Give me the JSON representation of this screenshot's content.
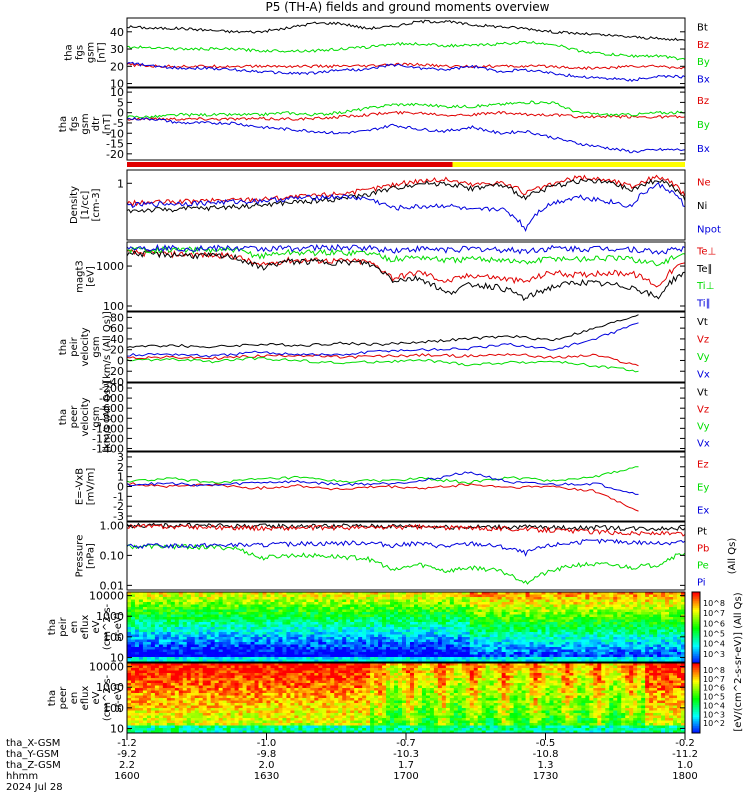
{
  "title": "P5 (TH-A) fields and ground moments overview",
  "colors": {
    "black": "#000000",
    "red": "#e00000",
    "green": "#00dd00",
    "blue": "#0000dd",
    "yellow": "#ffff00"
  },
  "chart_data": [
    {
      "type": "line",
      "panel": "fgs_gsm",
      "ylabel_lines": [
        "tha",
        "fgs",
        "gsm",
        "[nT]"
      ],
      "yticks": [
        "40",
        "30",
        "20",
        "10"
      ],
      "ylim": [
        8,
        48
      ],
      "series": [
        {
          "name": "Bt",
          "color": "black",
          "y": [
            43,
            42,
            42,
            41,
            40,
            40,
            42,
            45,
            45,
            42,
            43,
            46,
            46,
            44,
            43,
            42,
            40,
            39,
            38,
            37,
            36,
            35
          ]
        },
        {
          "name": "Bz",
          "color": "red",
          "y": [
            21,
            20,
            20,
            20,
            20,
            20,
            20,
            20,
            20,
            20,
            21,
            21,
            20,
            20,
            20,
            20,
            20,
            19,
            19,
            20,
            20,
            19
          ]
        },
        {
          "name": "By",
          "color": "green",
          "y": [
            31,
            31,
            30,
            30,
            30,
            29,
            29,
            29,
            30,
            31,
            33,
            33,
            32,
            32,
            33,
            34,
            33,
            29,
            27,
            26,
            26,
            24
          ]
        },
        {
          "name": "Bx",
          "color": "blue",
          "y": [
            22,
            20,
            19,
            19,
            18,
            17,
            16,
            16,
            18,
            18,
            21,
            19,
            18,
            20,
            17,
            18,
            16,
            14,
            13,
            12,
            14,
            14
          ]
        }
      ]
    },
    {
      "type": "line",
      "panel": "fgs_gsm_dt",
      "ylabel_lines": [
        "tha",
        "fgs",
        "gsm",
        "dtr",
        "[nT]"
      ],
      "yticks": [
        "10",
        "5",
        "0",
        "-5",
        "-10",
        "-15",
        "-20"
      ],
      "ylim": [
        -23,
        12
      ],
      "series": [
        {
          "name": "Bz",
          "color": "red",
          "y": [
            -3,
            -3,
            -3,
            -3,
            -3,
            -3,
            -3,
            -3,
            -2,
            -1,
            0,
            0,
            -1,
            -1,
            0,
            -1,
            -1,
            -2,
            -2,
            -2,
            -2,
            -2
          ]
        },
        {
          "name": "By",
          "color": "green",
          "y": [
            -2,
            -2,
            -1,
            -1,
            -1,
            -1,
            0,
            -1,
            0,
            2,
            4,
            4,
            3,
            3,
            4,
            5,
            5,
            0,
            -1,
            -1,
            0,
            0
          ]
        },
        {
          "name": "Bx",
          "color": "blue",
          "y": [
            -3,
            -3,
            -5,
            -5,
            -5,
            -7,
            -8,
            -9,
            -10,
            -9,
            -6,
            -8,
            -9,
            -7,
            -10,
            -9,
            -12,
            -15,
            -17,
            -19,
            -18,
            -18
          ]
        }
      ],
      "mode_bar": [
        {
          "from": 1600,
          "to": 1710,
          "color": "red"
        },
        {
          "from": 1710,
          "to": 1800,
          "color": "yellow"
        }
      ]
    },
    {
      "type": "line",
      "panel": "density",
      "log": true,
      "ylabel_lines": [
        "Density",
        "[1/cc]",
        "[cm-3]"
      ],
      "yticks": [
        "1"
      ],
      "ylim": [
        0.02,
        2.5
      ],
      "series": [
        {
          "name": "Ne",
          "color": "red",
          "y": [
            0.25,
            0.27,
            0.28,
            0.3,
            0.32,
            0.34,
            0.38,
            0.42,
            0.5,
            0.6,
            0.9,
            1.2,
            1.3,
            0.9,
            1.1,
            0.5,
            0.9,
            1.5,
            1.3,
            0.8,
            1.6,
            0.4
          ]
        },
        {
          "name": "Ni",
          "color": "black",
          "y": [
            0.15,
            0.16,
            0.17,
            0.18,
            0.2,
            0.22,
            0.26,
            0.3,
            0.35,
            0.45,
            0.7,
            1.0,
            1.0,
            0.7,
            0.9,
            0.35,
            0.8,
            1.2,
            1.1,
            0.6,
            1.3,
            0.3
          ]
        },
        {
          "name": "Npot",
          "color": "blue",
          "y": [
            0.22,
            0.24,
            0.25,
            0.26,
            0.28,
            0.3,
            0.34,
            0.38,
            0.4,
            0.35,
            0.18,
            0.2,
            0.22,
            0.15,
            0.18,
            0.04,
            0.25,
            0.4,
            0.3,
            0.2,
            0.9,
            0.2
          ]
        }
      ]
    },
    {
      "type": "line",
      "panel": "temperature",
      "log": true,
      "ylabel_lines": [
        "magt3",
        "[eV]"
      ],
      "yticks": [
        "1000",
        "100"
      ],
      "ylim": [
        75,
        4000
      ],
      "series": [
        {
          "name": "Te⊥",
          "color": "red",
          "y": [
            2200,
            2100,
            2000,
            1900,
            1800,
            1000,
            1400,
            1400,
            1350,
            1300,
            500,
            700,
            400,
            600,
            500,
            400,
            700,
            600,
            700,
            650,
            300,
            1200
          ]
        },
        {
          "name": "Te∥",
          "color": "black",
          "y": [
            2100,
            2000,
            1900,
            1800,
            1700,
            900,
            1300,
            1300,
            1250,
            1200,
            450,
            500,
            200,
            350,
            300,
            150,
            300,
            400,
            350,
            300,
            150,
            700
          ]
        },
        {
          "name": "Ti⊥",
          "color": "green",
          "y": [
            2600,
            2600,
            2600,
            2500,
            2500,
            1800,
            2200,
            2200,
            2200,
            2200,
            1500,
            1700,
            1400,
            1500,
            1500,
            1200,
            1600,
            1500,
            1600,
            1500,
            1100,
            2000
          ]
        },
        {
          "name": "Ti∥",
          "color": "blue",
          "y": [
            2900,
            2900,
            2800,
            2800,
            2800,
            2700,
            2800,
            2900,
            2900,
            2900,
            2500,
            2700,
            2600,
            2700,
            2600,
            2400,
            2800,
            2700,
            2800,
            2700,
            2200,
            2900
          ]
        }
      ]
    },
    {
      "type": "line",
      "panel": "peir_velocity",
      "ylabel_lines": [
        "tha",
        "peir",
        "velocity",
        "gsm",
        "[km/s (All Qs)]"
      ],
      "yticks": [
        "80",
        "60",
        "40",
        "20",
        "0",
        "-20",
        "-40"
      ],
      "ylim": [
        -40,
        90
      ],
      "series": [
        {
          "name": "Vt",
          "color": "black",
          "x": [
            0,
            1,
            2,
            3,
            4,
            5,
            6,
            7,
            8,
            9,
            10,
            11,
            12
          ],
          "y": [
            25,
            28,
            25,
            30,
            28,
            32,
            30,
            35,
            40,
            45,
            38,
            60,
            85
          ]
        },
        {
          "name": "Vz",
          "color": "red",
          "x": [
            0,
            1,
            2,
            3,
            4,
            5,
            6,
            7,
            8,
            9,
            10,
            11,
            12
          ],
          "y": [
            5,
            6,
            4,
            8,
            10,
            6,
            8,
            10,
            8,
            12,
            5,
            10,
            -10
          ]
        },
        {
          "name": "Vy",
          "color": "green",
          "x": [
            0,
            1,
            2,
            3,
            4,
            5,
            6,
            7,
            8,
            9,
            10,
            11,
            12
          ],
          "y": [
            0,
            2,
            -2,
            4,
            0,
            -5,
            -2,
            0,
            -8,
            -4,
            -2,
            -10,
            -20
          ]
        },
        {
          "name": "Vx",
          "color": "blue",
          "x": [
            0,
            1,
            2,
            3,
            4,
            5,
            6,
            7,
            8,
            9,
            10,
            11,
            12
          ],
          "y": [
            10,
            12,
            8,
            15,
            12,
            10,
            18,
            20,
            22,
            30,
            20,
            40,
            70
          ]
        }
      ]
    },
    {
      "type": "line",
      "panel": "peer_velocity",
      "ylabel_lines": [
        "tha",
        "peer",
        "velocity",
        "gsm",
        "[km/s (All Qs)]"
      ],
      "yticks": [
        "-200",
        "-400",
        "-600",
        "-800",
        "-1000",
        "-1200",
        "-1400"
      ],
      "ylim": [
        -1450,
        -100
      ],
      "series": [
        {
          "name": "Vt",
          "color": "black",
          "y": []
        },
        {
          "name": "Vz",
          "color": "red",
          "y": []
        },
        {
          "name": "Vy",
          "color": "green",
          "y": []
        },
        {
          "name": "Vx",
          "color": "blue",
          "y": []
        }
      ]
    },
    {
      "type": "line",
      "panel": "efield",
      "ylabel_lines": [
        "E=-VxB",
        "[mV/m]"
      ],
      "yticks": [
        "3",
        "2",
        "1",
        "0",
        "-1",
        "-2",
        "-3"
      ],
      "ylim": [
        -3.5,
        3.5
      ],
      "series": [
        {
          "name": "Ez",
          "color": "red",
          "x": [
            0,
            1,
            2,
            3,
            4,
            5,
            6,
            7,
            8,
            9,
            10,
            11,
            12
          ],
          "y": [
            0.3,
            0.0,
            0.2,
            -0.2,
            0.1,
            -0.3,
            0.0,
            -0.2,
            0.2,
            -0.1,
            0.0,
            -0.5,
            -2.5
          ]
        },
        {
          "name": "Ey",
          "color": "green",
          "x": [
            0,
            1,
            2,
            3,
            4,
            5,
            6,
            7,
            8,
            9,
            10,
            11,
            12
          ],
          "y": [
            0.5,
            0.8,
            0.4,
            0.7,
            0.9,
            0.5,
            0.6,
            0.8,
            0.4,
            0.9,
            0.6,
            1.0,
            2.0
          ]
        },
        {
          "name": "Ex",
          "color": "blue",
          "x": [
            0,
            1,
            2,
            3,
            4,
            5,
            6,
            7,
            8,
            9,
            10,
            11,
            12
          ],
          "y": [
            0.2,
            0.3,
            0.1,
            0.4,
            0.5,
            0.2,
            0.3,
            0.6,
            1.5,
            0.4,
            0.2,
            0.3,
            -0.8
          ]
        }
      ]
    },
    {
      "type": "line",
      "panel": "pressure",
      "log": true,
      "ylabel_lines": [
        "Pressure",
        "[nPa]"
      ],
      "yticks": [
        "1.00",
        "0.10",
        "0.01"
      ],
      "ylim": [
        0.007,
        1.3
      ],
      "series": [
        {
          "name": "Pt",
          "color": "black",
          "y": [
            1.0,
            1.0,
            1.0,
            1.0,
            0.95,
            0.95,
            0.95,
            0.95,
            0.95,
            0.95,
            0.95,
            0.95,
            0.9,
            0.9,
            0.9,
            0.9,
            0.85,
            0.85,
            0.85,
            0.8,
            0.8,
            0.8
          ]
        },
        {
          "name": "Pb",
          "color": "red",
          "y": [
            0.95,
            0.92,
            0.9,
            0.88,
            0.85,
            0.82,
            0.82,
            0.85,
            0.85,
            0.85,
            0.88,
            0.9,
            0.85,
            0.82,
            0.8,
            0.75,
            0.7,
            0.65,
            0.6,
            0.55,
            0.55,
            0.5
          ]
        },
        {
          "name": "Pe",
          "color": "green",
          "y": [
            0.2,
            0.2,
            0.2,
            0.19,
            0.18,
            0.08,
            0.1,
            0.1,
            0.09,
            0.08,
            0.03,
            0.05,
            0.03,
            0.04,
            0.03,
            0.012,
            0.03,
            0.05,
            0.05,
            0.04,
            0.05,
            0.12
          ]
        },
        {
          "name": "Pi",
          "color": "blue",
          "y": [
            0.2,
            0.21,
            0.21,
            0.22,
            0.22,
            0.22,
            0.24,
            0.25,
            0.26,
            0.27,
            0.22,
            0.25,
            0.2,
            0.25,
            0.2,
            0.12,
            0.22,
            0.28,
            0.3,
            0.28,
            0.25,
            0.3
          ]
        }
      ],
      "legend_note": "(All Qs)"
    },
    {
      "type": "heatmap",
      "panel": "peir_en_eflux",
      "ylabel_lines": [
        "tha",
        "peir",
        "en",
        "eflux",
        "eV",
        "(cm^2-s-",
        "sr-eV)"
      ],
      "yticks": [
        "10000",
        "1000",
        "100",
        "10"
      ],
      "ylim": [
        6,
        15000
      ],
      "log": true
    },
    {
      "type": "heatmap",
      "panel": "peer_en_eflux",
      "ylabel_lines": [
        "tha",
        "peer",
        "en",
        "eflux",
        "eV",
        "(cm^2-s-",
        "sr-eV)"
      ],
      "yticks": [
        "10000",
        "1000",
        "100",
        "10"
      ],
      "ylim": [
        6,
        15000
      ],
      "log": true
    }
  ],
  "colorbar": {
    "label": "[eV/(cm^2-s-sr-eV)] (All Qs)",
    "ticks_upper": [
      "10^8",
      "10^7",
      "10^6",
      "10^5",
      "10^4",
      "10^3"
    ],
    "ticks_lower": [
      "10^8",
      "10^7",
      "10^6",
      "10^5",
      "10^4",
      "10^3",
      "10^2"
    ]
  },
  "xaxis": {
    "rows": [
      {
        "label": "tha_X-GSM",
        "values": [
          "-1.2",
          "-1.0",
          "-0.7",
          "-0.5",
          "-0.2"
        ]
      },
      {
        "label": "tha_Y-GSM",
        "values": [
          "-9.2",
          "-9.8",
          "-10.3",
          "-10.8",
          "-11.2"
        ]
      },
      {
        "label": "tha_Z-GSM",
        "values": [
          "2.2",
          "2.0",
          "1.7",
          "1.3",
          "1.0"
        ]
      },
      {
        "label": "hhmm",
        "values": [
          "1600",
          "1630",
          "1700",
          "1730",
          "1800"
        ]
      }
    ],
    "date": "2024 Jul 28",
    "range_minutes": [
      0,
      120
    ],
    "tick_minutes": [
      0,
      30,
      60,
      90,
      120
    ]
  }
}
